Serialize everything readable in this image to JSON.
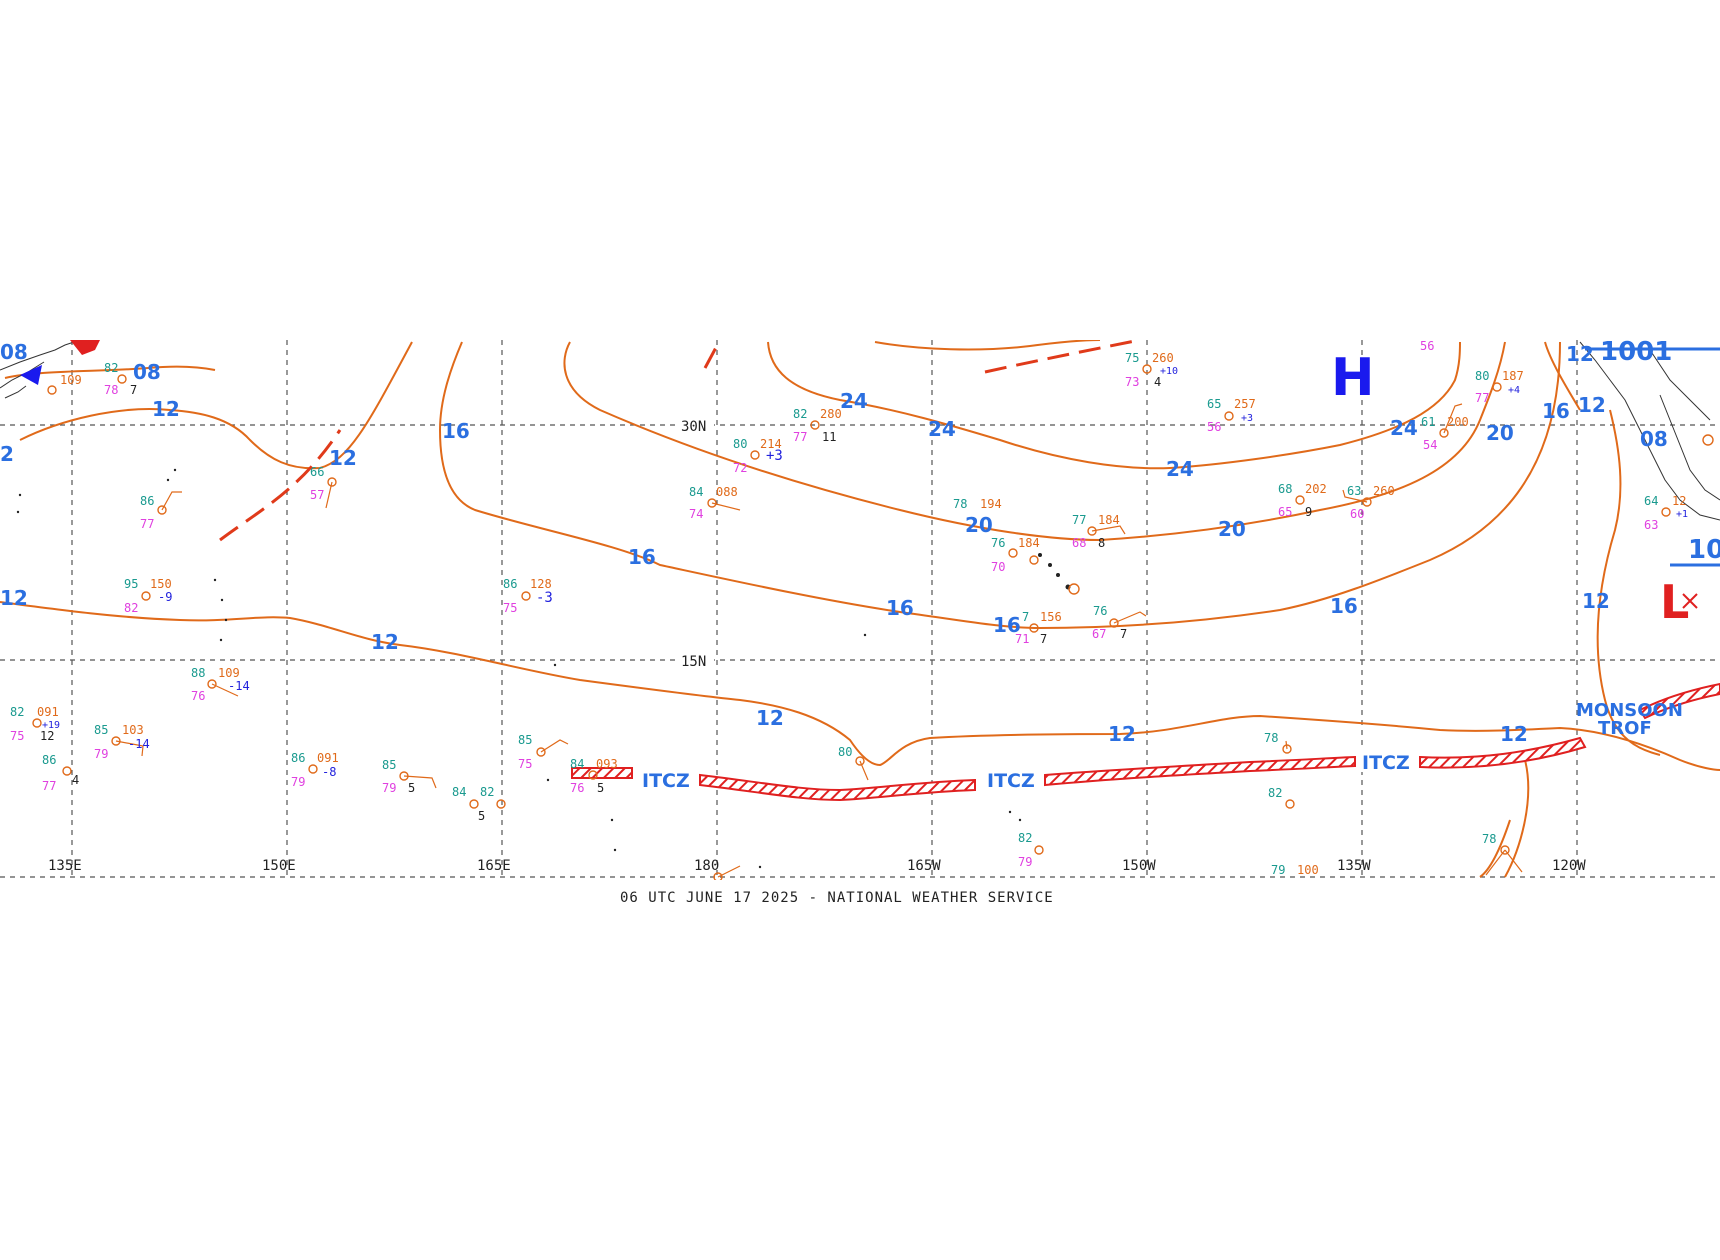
{
  "map": {
    "footer": "06 UTC JUNE 17 2025 - NATIONAL WEATHER SERVICE",
    "longitude_labels": [
      "135E",
      "150E",
      "165E",
      "180",
      "165W",
      "150W",
      "135W",
      "120W"
    ],
    "latitude_labels": [
      "30N",
      "15N"
    ],
    "isobar_labels": {
      "left_top_08": "08",
      "mid_08": "08",
      "left_2": "2",
      "l12_a": "12",
      "l12_b": "12",
      "l16_a": "16",
      "l24_a": "24",
      "l24_b": "24",
      "l24_c": "24",
      "l24_d": "24",
      "l20_a": "20",
      "l20_b": "20",
      "l20_c": "20",
      "l16_b": "16",
      "l16_c": "16",
      "l16_d": "16",
      "l16_e": "16",
      "l16_f": "16",
      "l12_c": "12",
      "l12_d": "12",
      "l12_e": "12",
      "l12_f": "12",
      "l12_g": "12",
      "l12_h": "12",
      "l12_i": "12",
      "r08": "08",
      "r1001": "1001",
      "r10": "10"
    },
    "pressure_centers": {
      "high": "H",
      "low": "L"
    },
    "itcz_labels": [
      "ITCZ",
      "ITCZ",
      "ITCZ"
    ],
    "monsoon_label": [
      "MONSOON",
      "TROF"
    ],
    "colors": {
      "isobar": "#e06a1a",
      "label": "#2b6fe0",
      "itcz": "#e02020",
      "high": "#1a1aee",
      "low": "#e02020"
    },
    "observations": [
      {
        "t": "82",
        "p": "109",
        "d": "78",
        "v": "7"
      },
      {
        "t": "86",
        "d": "77"
      },
      {
        "t": "66",
        "d": "57"
      },
      {
        "t": "95",
        "p": "150",
        "d": "82",
        "tend": "-9"
      },
      {
        "t": "88",
        "p": "109",
        "d": "76",
        "tend": "-14"
      },
      {
        "t": "82",
        "p": "091",
        "d": "75",
        "tend": "+19",
        "v": "12"
      },
      {
        "t": "85",
        "p": "103",
        "d": "79",
        "tend": "-14"
      },
      {
        "t": "86",
        "d": "77",
        "v": "4"
      },
      {
        "t": "86",
        "p": "091",
        "d": "79",
        "tend": "-8"
      },
      {
        "t": "85",
        "d": "79",
        "v": "5"
      },
      {
        "t": "84",
        "v": "5"
      },
      {
        "t": "82"
      },
      {
        "t": "86",
        "p": "128",
        "d": "75",
        "tend": "-3"
      },
      {
        "t": "85",
        "d": "75"
      },
      {
        "t": "84",
        "p": "093",
        "d": "76",
        "v": "5"
      },
      {
        "t": "84",
        "p": "088",
        "d": "74"
      },
      {
        "t": "80",
        "p": "214",
        "d": "72",
        "tend": "+3"
      },
      {
        "t": "82",
        "p": "280",
        "d": "77",
        "v": "11"
      },
      {
        "t": "78",
        "p": "194"
      },
      {
        "t": "76",
        "p": "184",
        "d": "70"
      },
      {
        "t": "77",
        "p": "184",
        "d": "68",
        "v": "8"
      },
      {
        "t": "76",
        "d": "67",
        "v": "7"
      },
      {
        "t": "7",
        "p": "156",
        "d": "71",
        "v": "7"
      },
      {
        "t": "80"
      },
      {
        "t": "82",
        "d": "79"
      },
      {
        "t": "75",
        "p": "260",
        "d": "73",
        "tend": "+10",
        "v": "4"
      },
      {
        "t": "65",
        "p": "257",
        "d": "56",
        "tend": "+3"
      },
      {
        "t": "68",
        "p": "202",
        "d": "65",
        "v": "9"
      },
      {
        "t": "63",
        "p": "260",
        "d": "60"
      },
      {
        "t": "61",
        "p": "200",
        "d": "54"
      },
      {
        "t": "56"
      },
      {
        "t": "80",
        "p": "187",
        "d": "77",
        "tend": "+4"
      },
      {
        "t": "78"
      },
      {
        "t": "82"
      },
      {
        "t": "78"
      },
      {
        "t": "79",
        "p": "100"
      },
      {
        "t": "64",
        "p": "12",
        "d": "63",
        "tend": "+1"
      }
    ]
  }
}
